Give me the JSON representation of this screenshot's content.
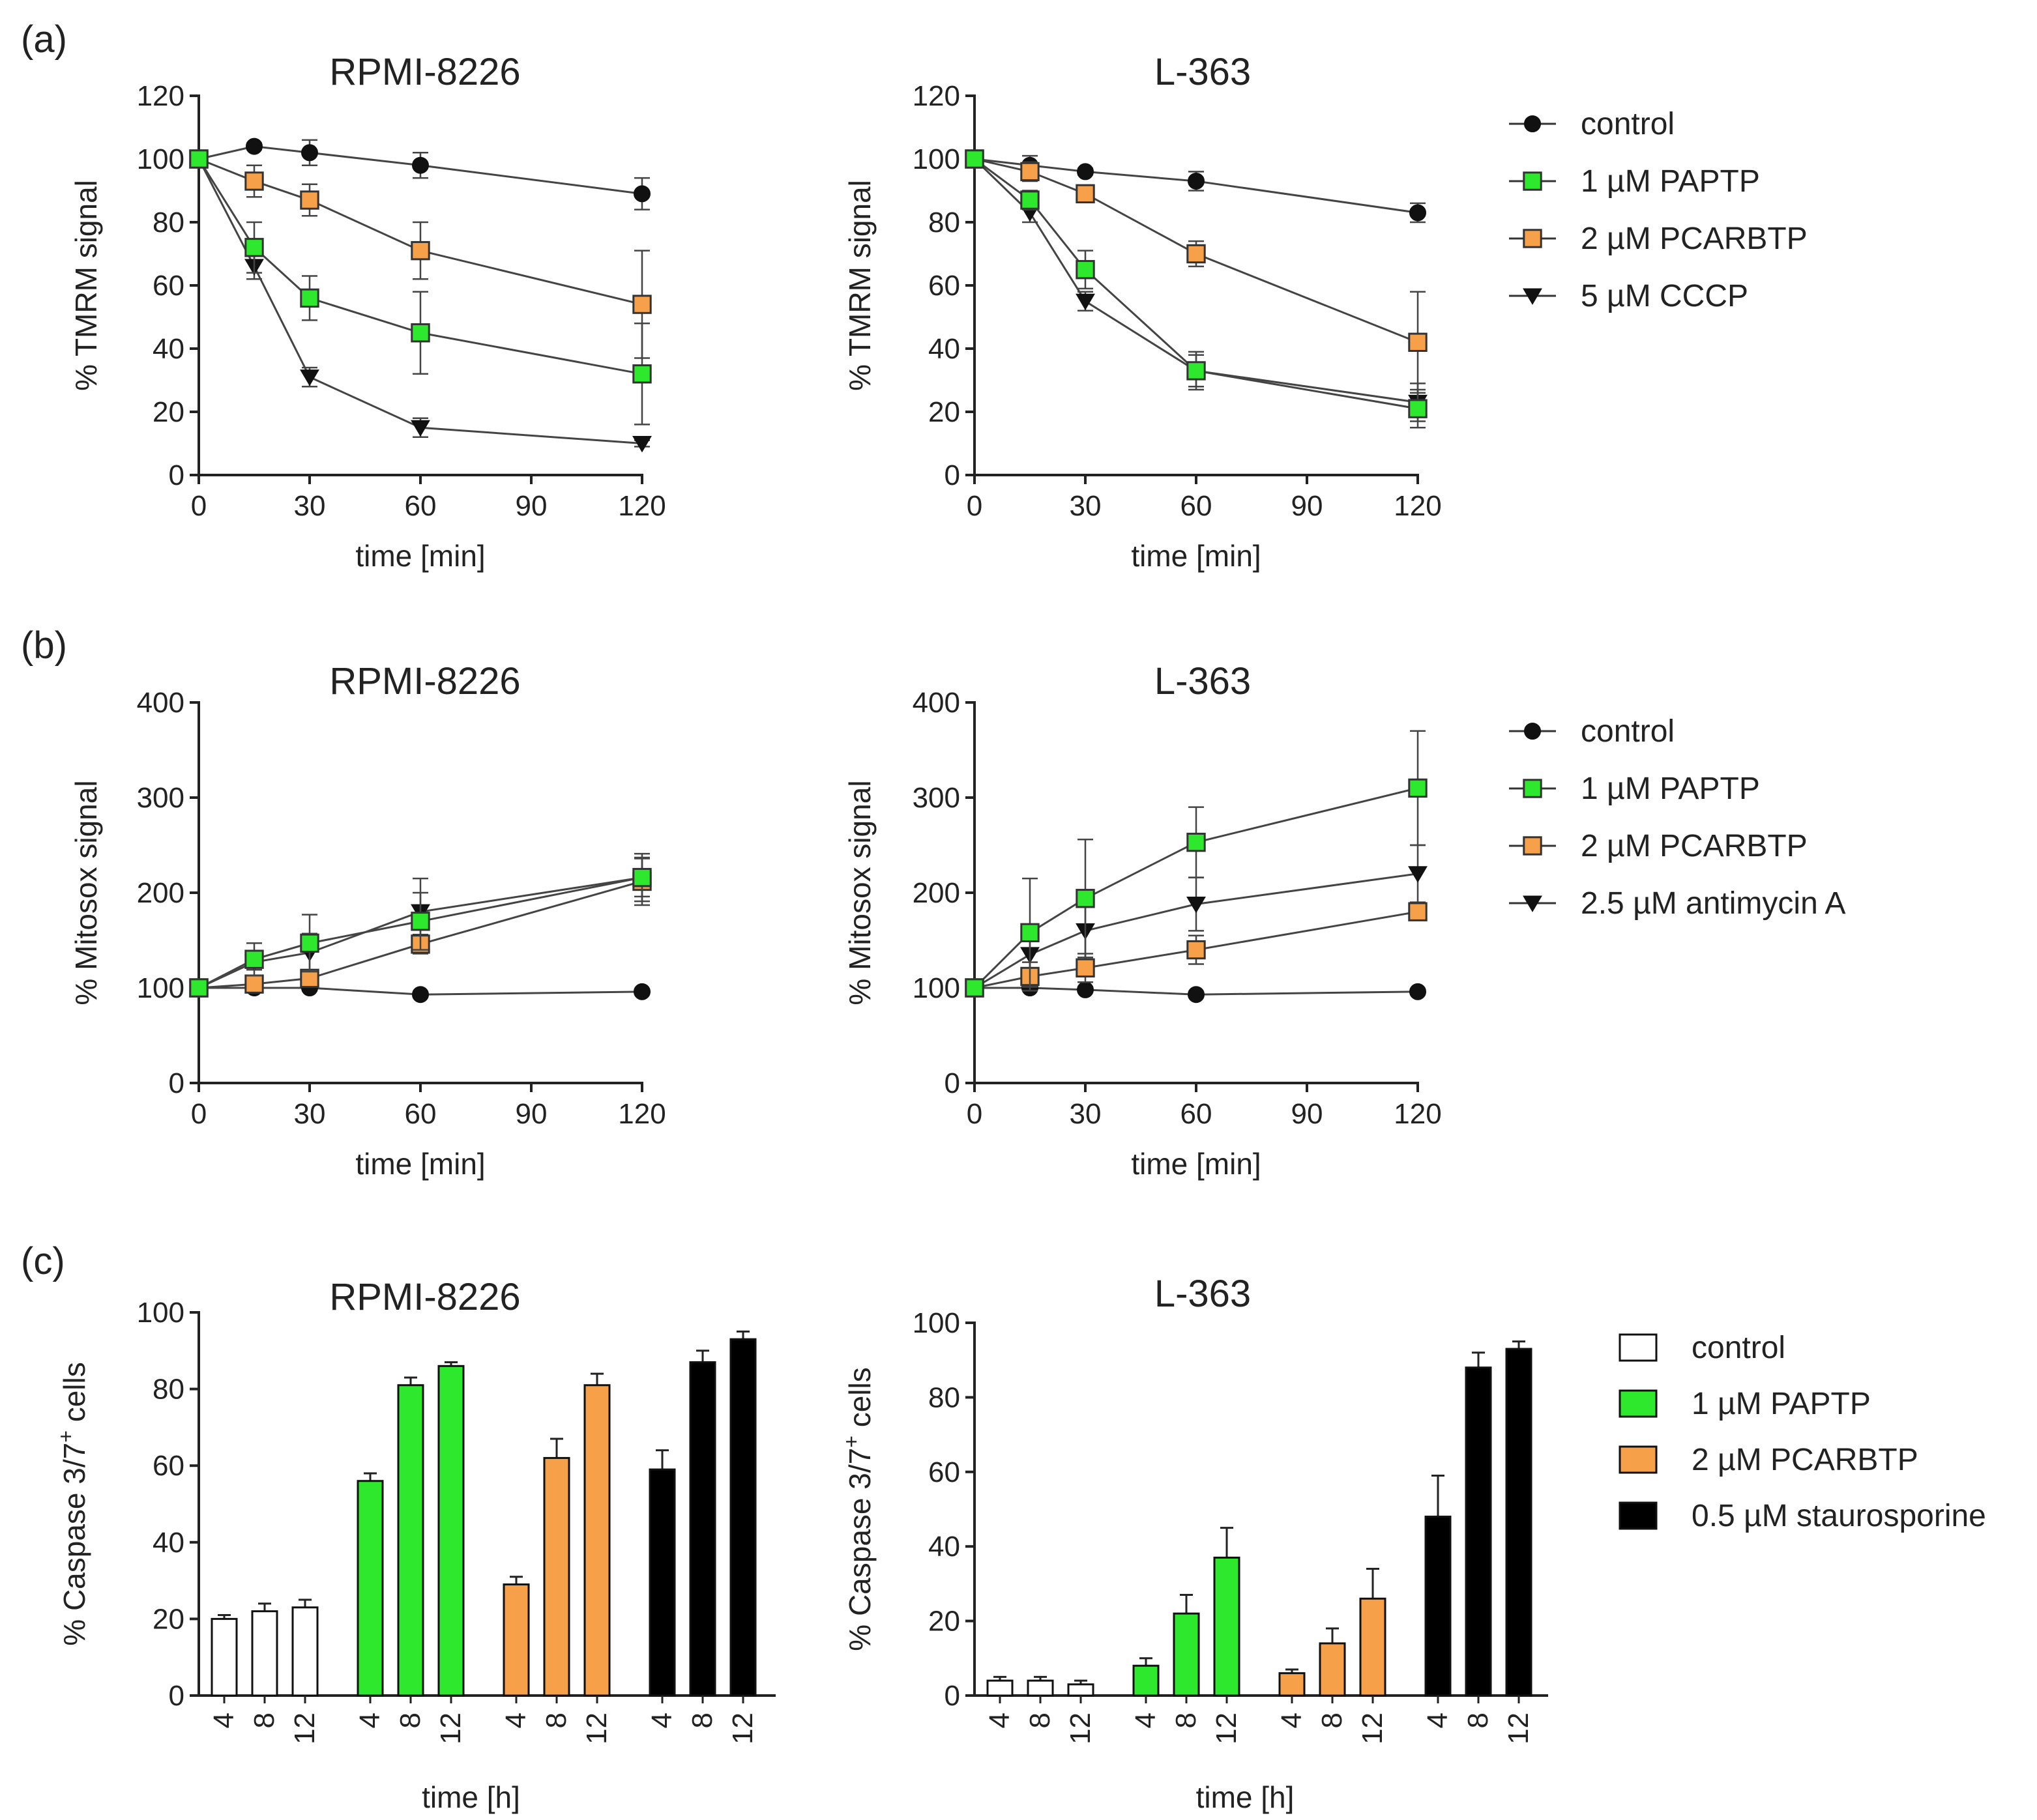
{
  "figure": {
    "panel_labels": [
      "(a)",
      "(b)",
      "(c)"
    ]
  },
  "legends": [
    {
      "entries": [
        {
          "label": "control",
          "marker": "circle",
          "color": "#111111"
        },
        {
          "label": "1 µM PAPTP",
          "marker": "square",
          "color": "#2ee82e"
        },
        {
          "label": "2 µM PCARBTP",
          "marker": "square",
          "color": "#f7a04a"
        },
        {
          "label": "5 µM CCCP",
          "marker": "triangle-down",
          "color": "#111111"
        }
      ]
    },
    {
      "entries": [
        {
          "label": "control",
          "marker": "circle",
          "color": "#111111"
        },
        {
          "label": "1 µM PAPTP",
          "marker": "square",
          "color": "#2ee82e"
        },
        {
          "label": "2 µM PCARBTP",
          "marker": "square",
          "color": "#f7a04a"
        },
        {
          "label": "2.5 µM antimycin A",
          "marker": "triangle-down",
          "color": "#111111"
        }
      ]
    },
    {
      "entries": [
        {
          "label": "control",
          "marker": "box",
          "color": "#ffffff"
        },
        {
          "label": "1 µM PAPTP",
          "marker": "box",
          "color": "#2ee82e"
        },
        {
          "label": "2 µM PCARBTP",
          "marker": "box",
          "color": "#f7a04a"
        },
        {
          "label": "0.5 µM staurosporine",
          "marker": "box",
          "color": "#000000"
        }
      ]
    }
  ],
  "chart_data": [
    {
      "panel": "(a)",
      "type": "line",
      "title": "RPMI-8226",
      "xlabel": "time [min]",
      "ylabel": "% TMRM signal",
      "x": [
        0,
        15,
        30,
        60,
        120
      ],
      "xticks": [
        0,
        30,
        60,
        90,
        120
      ],
      "xlim": [
        0,
        120
      ],
      "ylim": [
        0,
        120
      ],
      "yticks": [
        0,
        20,
        40,
        60,
        80,
        100,
        120
      ],
      "series": [
        {
          "name": "control",
          "color": "#111111",
          "marker": "circle",
          "values": [
            100,
            104,
            102,
            98,
            89
          ],
          "errors": [
            0,
            1,
            4,
            4,
            5
          ]
        },
        {
          "name": "1 µM PAPTP",
          "color": "#2ee82e",
          "marker": "square",
          "values": [
            100,
            72,
            56,
            45,
            32
          ],
          "errors": [
            0,
            8,
            7,
            13,
            16
          ]
        },
        {
          "name": "2 µM PCARBTP",
          "color": "#f7a04a",
          "marker": "square",
          "values": [
            100,
            93,
            87,
            71,
            54
          ],
          "errors": [
            0,
            5,
            5,
            9,
            17
          ]
        },
        {
          "name": "5 µM CCCP",
          "color": "#111111",
          "marker": "triangle-down",
          "values": [
            100,
            66,
            31,
            15,
            10
          ],
          "errors": [
            0,
            4,
            3,
            3,
            1
          ]
        }
      ]
    },
    {
      "panel": "(a)",
      "type": "line",
      "title": "L-363",
      "xlabel": "time [min]",
      "ylabel": "% TMRM signal",
      "x": [
        0,
        15,
        30,
        60,
        120
      ],
      "xticks": [
        0,
        30,
        60,
        90,
        120
      ],
      "xlim": [
        0,
        120
      ],
      "ylim": [
        0,
        120
      ],
      "yticks": [
        0,
        20,
        40,
        60,
        80,
        100,
        120
      ],
      "series": [
        {
          "name": "control",
          "color": "#111111",
          "marker": "circle",
          "values": [
            100,
            98,
            96,
            93,
            83
          ],
          "errors": [
            0,
            3,
            1,
            3,
            3
          ]
        },
        {
          "name": "1 µM PAPTP",
          "color": "#2ee82e",
          "marker": "square",
          "values": [
            100,
            87,
            65,
            33,
            21
          ],
          "errors": [
            0,
            3,
            6,
            6,
            6
          ]
        },
        {
          "name": "2 µM PCARBTP",
          "color": "#f7a04a",
          "marker": "square",
          "values": [
            100,
            96,
            89,
            70,
            42
          ],
          "errors": [
            0,
            3,
            2,
            4,
            16
          ]
        },
        {
          "name": "5 µM CCCP",
          "color": "#111111",
          "marker": "triangle-down",
          "values": [
            100,
            83,
            55,
            33,
            23
          ],
          "errors": [
            0,
            3,
            3,
            5,
            6
          ]
        }
      ]
    },
    {
      "panel": "(b)",
      "type": "line",
      "title": "RPMI-8226",
      "xlabel": "time [min]",
      "ylabel": "% Mitosox signal",
      "x": [
        0,
        15,
        30,
        60,
        120
      ],
      "xticks": [
        0,
        30,
        60,
        90,
        120
      ],
      "xlim": [
        0,
        120
      ],
      "ylim": [
        0,
        400
      ],
      "yticks": [
        0,
        100,
        200,
        300,
        400
      ],
      "series": [
        {
          "name": "control",
          "color": "#111111",
          "marker": "circle",
          "values": [
            100,
            100,
            100,
            93,
            96
          ],
          "errors": [
            0,
            3,
            3,
            3,
            3
          ]
        },
        {
          "name": "1 µM PAPTP",
          "color": "#2ee82e",
          "marker": "square",
          "values": [
            100,
            130,
            147,
            170,
            216
          ],
          "errors": [
            0,
            17,
            30,
            30,
            25
          ]
        },
        {
          "name": "2 µM PCARBTP",
          "color": "#f7a04a",
          "marker": "square",
          "values": [
            100,
            104,
            110,
            146,
            212
          ],
          "errors": [
            0,
            5,
            6,
            10,
            25
          ]
        },
        {
          "name": "2.5 µM antimycin A",
          "color": "#111111",
          "marker": "triangle-down",
          "values": [
            100,
            127,
            137,
            180,
            216
          ],
          "errors": [
            0,
            8,
            20,
            35,
            20
          ]
        }
      ]
    },
    {
      "panel": "(b)",
      "type": "line",
      "title": "L-363",
      "xlabel": "time [min]",
      "ylabel": "% Mitosox signal",
      "x": [
        0,
        15,
        30,
        60,
        120
      ],
      "xticks": [
        0,
        30,
        60,
        90,
        120
      ],
      "xlim": [
        0,
        120
      ],
      "ylim": [
        0,
        400
      ],
      "yticks": [
        0,
        100,
        200,
        300,
        400
      ],
      "series": [
        {
          "name": "control",
          "color": "#111111",
          "marker": "circle",
          "values": [
            100,
            100,
            98,
            93,
            96
          ],
          "errors": [
            0,
            3,
            3,
            3,
            3
          ]
        },
        {
          "name": "1 µM PAPTP",
          "color": "#2ee82e",
          "marker": "square",
          "values": [
            100,
            158,
            194,
            253,
            310
          ],
          "errors": [
            0,
            57,
            62,
            37,
            60
          ]
        },
        {
          "name": "2 µM PCARBTP",
          "color": "#f7a04a",
          "marker": "square",
          "values": [
            100,
            112,
            121,
            140,
            180
          ],
          "errors": [
            0,
            15,
            15,
            15,
            8
          ]
        },
        {
          "name": "2.5 µM antimycin A",
          "color": "#111111",
          "marker": "triangle-down",
          "values": [
            100,
            135,
            160,
            188,
            220
          ],
          "errors": [
            0,
            30,
            30,
            28,
            30
          ]
        }
      ]
    },
    {
      "panel": "(c)",
      "type": "bar",
      "title": "RPMI-8226",
      "xlabel": "time [h]",
      "ylabel": "% Caspase 3/7",
      "ylabel_superscript": "+",
      "ylabel_suffix": " cells",
      "ylim": [
        0,
        100
      ],
      "yticks": [
        0,
        20,
        40,
        60,
        80,
        100
      ],
      "categories": [
        "4",
        "8",
        "12"
      ],
      "series": [
        {
          "name": "control",
          "color": "#ffffff",
          "values": [
            20,
            22,
            23
          ],
          "errors": [
            1,
            2,
            2
          ]
        },
        {
          "name": "1 µM PAPTP",
          "color": "#2ee82e",
          "values": [
            56,
            81,
            86
          ],
          "errors": [
            2,
            2,
            1
          ]
        },
        {
          "name": "2 µM PCARBTP",
          "color": "#f7a04a",
          "values": [
            29,
            62,
            81
          ],
          "errors": [
            2,
            5,
            3
          ]
        },
        {
          "name": "0.5 µM staurosporine",
          "color": "#000000",
          "values": [
            59,
            87,
            93
          ],
          "errors": [
            5,
            3,
            2
          ]
        }
      ]
    },
    {
      "panel": "(c)",
      "type": "bar",
      "title": "L-363",
      "xlabel": "time [h]",
      "ylabel": "% Caspase 3/7",
      "ylabel_superscript": "+",
      "ylabel_suffix": " cells",
      "ylim": [
        0,
        100
      ],
      "yticks": [
        0,
        20,
        40,
        60,
        80,
        100
      ],
      "categories": [
        "4",
        "8",
        "12"
      ],
      "series": [
        {
          "name": "control",
          "color": "#ffffff",
          "values": [
            4,
            4,
            3
          ],
          "errors": [
            1,
            1,
            1
          ]
        },
        {
          "name": "1 µM PAPTP",
          "color": "#2ee82e",
          "values": [
            8,
            22,
            37
          ],
          "errors": [
            2,
            5,
            8
          ]
        },
        {
          "name": "2 µM PCARBTP",
          "color": "#f7a04a",
          "values": [
            6,
            14,
            26
          ],
          "errors": [
            1,
            4,
            8
          ]
        },
        {
          "name": "0.5 µM staurosporine",
          "color": "#000000",
          "values": [
            48,
            88,
            93
          ],
          "errors": [
            11,
            4,
            2
          ]
        }
      ]
    }
  ]
}
